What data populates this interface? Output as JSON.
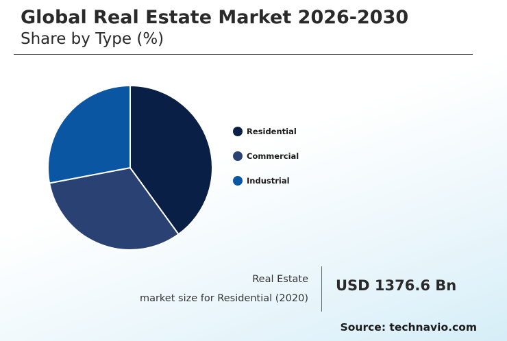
{
  "header": {
    "title": "Global Real Estate Market 2026-2030",
    "subtitle": "Share by Type (%)"
  },
  "chart_data": {
    "type": "pie",
    "categories": [
      "Residential",
      "Commercial",
      "Industrial"
    ],
    "values": [
      40,
      32,
      28
    ],
    "colors": [
      "#0a1f45",
      "#2a4273",
      "#0a56a3"
    ],
    "start_angle_deg": 0,
    "direction": "clockwise",
    "legend_position": "right"
  },
  "legend": {
    "items": [
      {
        "label": "Residential",
        "color": "#0a1f45"
      },
      {
        "label": "Commercial",
        "color": "#2a4273"
      },
      {
        "label": "Industrial",
        "color": "#0a56a3"
      }
    ]
  },
  "stat": {
    "line1": "Real Estate",
    "line2": "market size for Residential (2020)",
    "value": "USD 1376.6 Bn"
  },
  "source": "Source: technavio.com"
}
